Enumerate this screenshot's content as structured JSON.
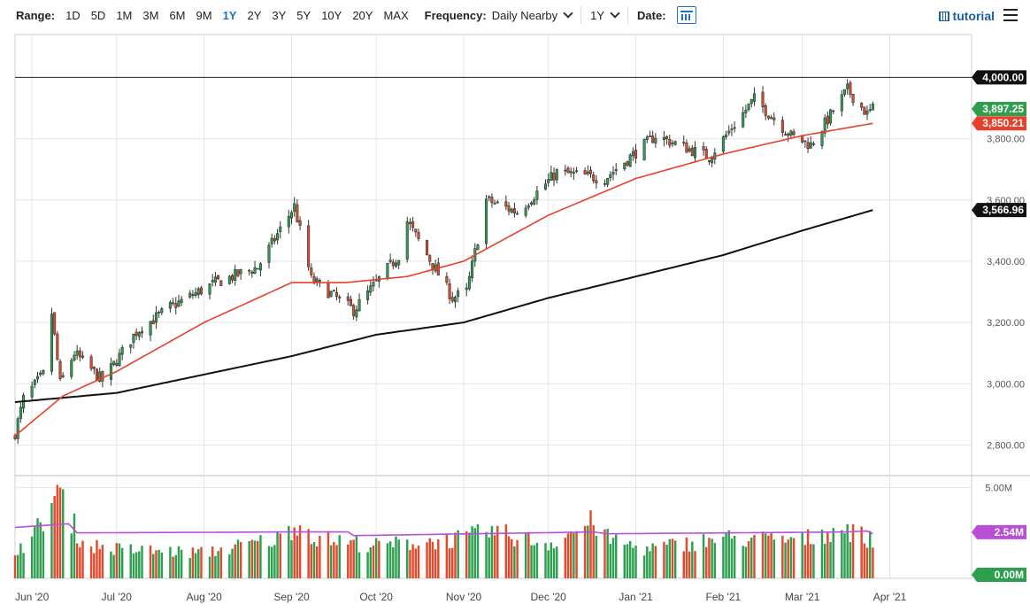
{
  "toolbar": {
    "range_label": "Range:",
    "ranges": [
      "1D",
      "5D",
      "1M",
      "3M",
      "6M",
      "9M",
      "1Y",
      "2Y",
      "3Y",
      "5Y",
      "10Y",
      "20Y",
      "MAX"
    ],
    "active_range": "1Y",
    "frequency_label": "Frequency:",
    "frequency_value": "Daily Nearby",
    "period_value": "1Y",
    "date_label": "Date:",
    "tutorial_label": "tutorial"
  },
  "colors": {
    "up": "#2e9e4f",
    "down": "#e14a2d",
    "ma50": "#e8402a",
    "ma200": "#111111",
    "volume_ma": "#b84fd6",
    "grid": "#e4e4e4"
  },
  "chart_data": [
    {
      "type": "candlestick",
      "x_axis": {
        "labels": [
          "Jun '20",
          "Jul '20",
          "Aug '20",
          "Sep '20",
          "Oct '20",
          "Nov '20",
          "Dec '20",
          "Jan '21",
          "Feb '21",
          "Mar '21",
          "Apr '21"
        ],
        "dates": [
          "2020-06-01",
          "2020-07-01",
          "2020-08-01",
          "2020-09-01",
          "2020-10-01",
          "2020-11-01",
          "2020-12-01",
          "2021-01-01",
          "2021-02-01",
          "2021-03-01",
          "2021-04-01"
        ],
        "start": "2020-05-26",
        "end": "2021-04-30"
      },
      "y_axis": {
        "min": 2700,
        "max": 4140,
        "ticks": [
          2800,
          3000,
          3200,
          3400,
          3600,
          3800
        ],
        "tick_labels": [
          "2,800.00",
          "3,000.00",
          "3,200.00",
          "3,400.00",
          "3,600.00",
          "3,800.00"
        ]
      },
      "horizontal_line": {
        "value": 4000,
        "label": "4,000.00"
      },
      "last_price": {
        "value": 3897.25,
        "label": "3,897.25"
      },
      "ma50": {
        "label": "3,850.21",
        "last": 3850.21
      },
      "ma200": {
        "label": "3,566.96",
        "last": 3566.96
      },
      "price_anchors": [
        [
          "2020-05-26",
          2840
        ],
        [
          "2020-05-29",
          2950
        ],
        [
          "2020-06-05",
          3030
        ],
        [
          "2020-06-08",
          3230
        ],
        [
          "2020-06-11",
          3000
        ],
        [
          "2020-06-16",
          3100
        ],
        [
          "2020-06-26",
          3010
        ],
        [
          "2020-07-08",
          3170
        ],
        [
          "2020-07-20",
          3250
        ],
        [
          "2020-08-05",
          3330
        ],
        [
          "2020-08-20",
          3380
        ],
        [
          "2020-09-02",
          3580
        ],
        [
          "2020-09-08",
          3340
        ],
        [
          "2020-09-23",
          3240
        ],
        [
          "2020-10-09",
          3420
        ],
        [
          "2020-10-12",
          3530
        ],
        [
          "2020-10-28",
          3280
        ],
        [
          "2020-11-02",
          3300
        ],
        [
          "2020-11-09",
          3600
        ],
        [
          "2020-11-20",
          3560
        ],
        [
          "2020-12-04",
          3690
        ],
        [
          "2020-12-21",
          3670
        ],
        [
          "2021-01-08",
          3810
        ],
        [
          "2021-01-27",
          3740
        ],
        [
          "2021-02-12",
          3930
        ],
        [
          "2021-02-25",
          3810
        ],
        [
          "2021-03-04",
          3780
        ],
        [
          "2021-03-17",
          3960
        ],
        [
          "2021-03-24",
          3880
        ],
        [
          "2021-03-26",
          3897
        ]
      ],
      "ma50_anchors": [
        [
          "2020-05-26",
          2830
        ],
        [
          "2020-06-12",
          2960
        ],
        [
          "2020-07-01",
          3040
        ],
        [
          "2020-08-01",
          3200
        ],
        [
          "2020-09-01",
          3330
        ],
        [
          "2020-09-20",
          3330
        ],
        [
          "2020-10-12",
          3350
        ],
        [
          "2020-11-01",
          3400
        ],
        [
          "2020-12-01",
          3550
        ],
        [
          "2021-01-01",
          3670
        ],
        [
          "2021-02-01",
          3750
        ],
        [
          "2021-03-01",
          3810
        ],
        [
          "2021-03-26",
          3850
        ]
      ],
      "ma200_anchors": [
        [
          "2020-05-26",
          2940
        ],
        [
          "2020-07-01",
          2970
        ],
        [
          "2020-08-01",
          3030
        ],
        [
          "2020-09-01",
          3090
        ],
        [
          "2020-10-01",
          3160
        ],
        [
          "2020-11-01",
          3200
        ],
        [
          "2020-12-01",
          3280
        ],
        [
          "2021-01-01",
          3350
        ],
        [
          "2021-02-01",
          3420
        ],
        [
          "2021-03-01",
          3500
        ],
        [
          "2021-03-26",
          3567
        ]
      ]
    },
    {
      "type": "bar",
      "name": "volume",
      "y_axis": {
        "min": 0,
        "max": 5.6,
        "unit": "M",
        "ticks": [
          5.0
        ],
        "tick_labels": [
          "5.00M"
        ]
      },
      "volume_ma_label": "2.54M",
      "volume_ma_last": 2.54,
      "zero_label": "0.00M",
      "volume_anchors": [
        [
          "2020-05-26",
          1.6
        ],
        [
          "2020-06-01",
          2.1
        ],
        [
          "2020-06-10",
          4.8
        ],
        [
          "2020-06-15",
          3.2
        ],
        [
          "2020-06-19",
          1.9
        ],
        [
          "2020-07-01",
          1.6
        ],
        [
          "2020-08-01",
          1.4
        ],
        [
          "2020-08-28",
          2.2
        ],
        [
          "2020-09-03",
          3.1
        ],
        [
          "2020-09-10",
          2.2
        ],
        [
          "2020-10-01",
          1.8
        ],
        [
          "2020-11-02",
          2.2
        ],
        [
          "2020-11-10",
          2.6
        ],
        [
          "2020-12-01",
          1.9
        ],
        [
          "2020-12-17",
          3.1
        ],
        [
          "2020-12-22",
          2.2
        ],
        [
          "2021-01-04",
          1.6
        ],
        [
          "2021-02-01",
          2.2
        ],
        [
          "2021-03-01",
          2.1
        ],
        [
          "2021-03-15",
          2.8
        ],
        [
          "2021-03-19",
          2.6
        ],
        [
          "2021-03-26",
          2.0
        ]
      ],
      "volume_ma_anchors": [
        [
          "2020-05-26",
          2.8
        ],
        [
          "2020-06-14",
          3.0
        ],
        [
          "2020-06-17",
          2.5
        ],
        [
          "2020-08-28",
          2.55
        ],
        [
          "2020-09-21",
          2.55
        ],
        [
          "2020-09-23",
          2.35
        ],
        [
          "2020-12-17",
          2.55
        ],
        [
          "2020-12-22",
          2.45
        ],
        [
          "2021-03-16",
          2.55
        ],
        [
          "2021-03-24",
          2.6
        ],
        [
          "2021-03-26",
          2.45
        ]
      ]
    }
  ]
}
